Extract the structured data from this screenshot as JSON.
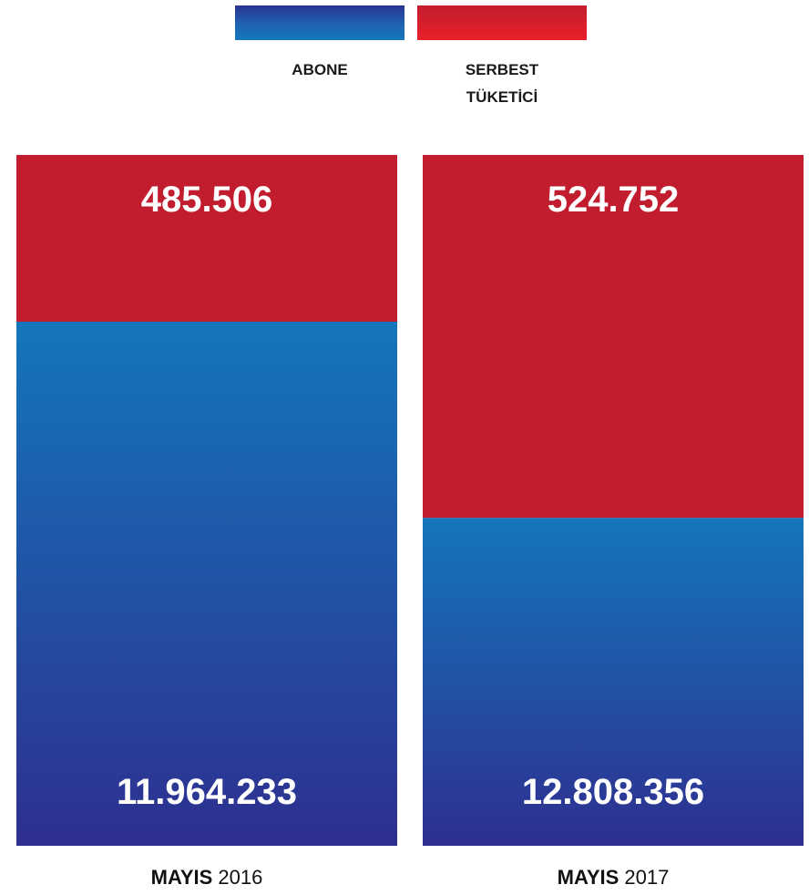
{
  "legend": {
    "abone": {
      "label": "ABONE",
      "color": "#1f5fb0"
    },
    "serbest": {
      "label_line1": "SERBEST",
      "label_line2": "TÜKETİCİ",
      "color": "#c21d2e"
    }
  },
  "colors": {
    "abone_top": "#1476bb",
    "abone_bottom": "#2e2f8f",
    "serbest": "#c21d2e"
  },
  "chart_data": {
    "type": "bar",
    "stacked": true,
    "categories": [
      "MAYIS 2016",
      "MAYIS 2017"
    ],
    "category_parts": [
      {
        "bold": "MAYIS",
        "normal": "2016"
      },
      {
        "bold": "MAYIS",
        "normal": "2017"
      }
    ],
    "series": [
      {
        "name": "ABONE",
        "values": [
          11964233,
          12808356
        ],
        "labels": [
          "11.964.233",
          "12.808.356"
        ]
      },
      {
        "name": "SERBEST TÜKETİCİ",
        "values": [
          485506,
          524752
        ],
        "labels": [
          "485.506",
          "524.752"
        ]
      }
    ]
  }
}
